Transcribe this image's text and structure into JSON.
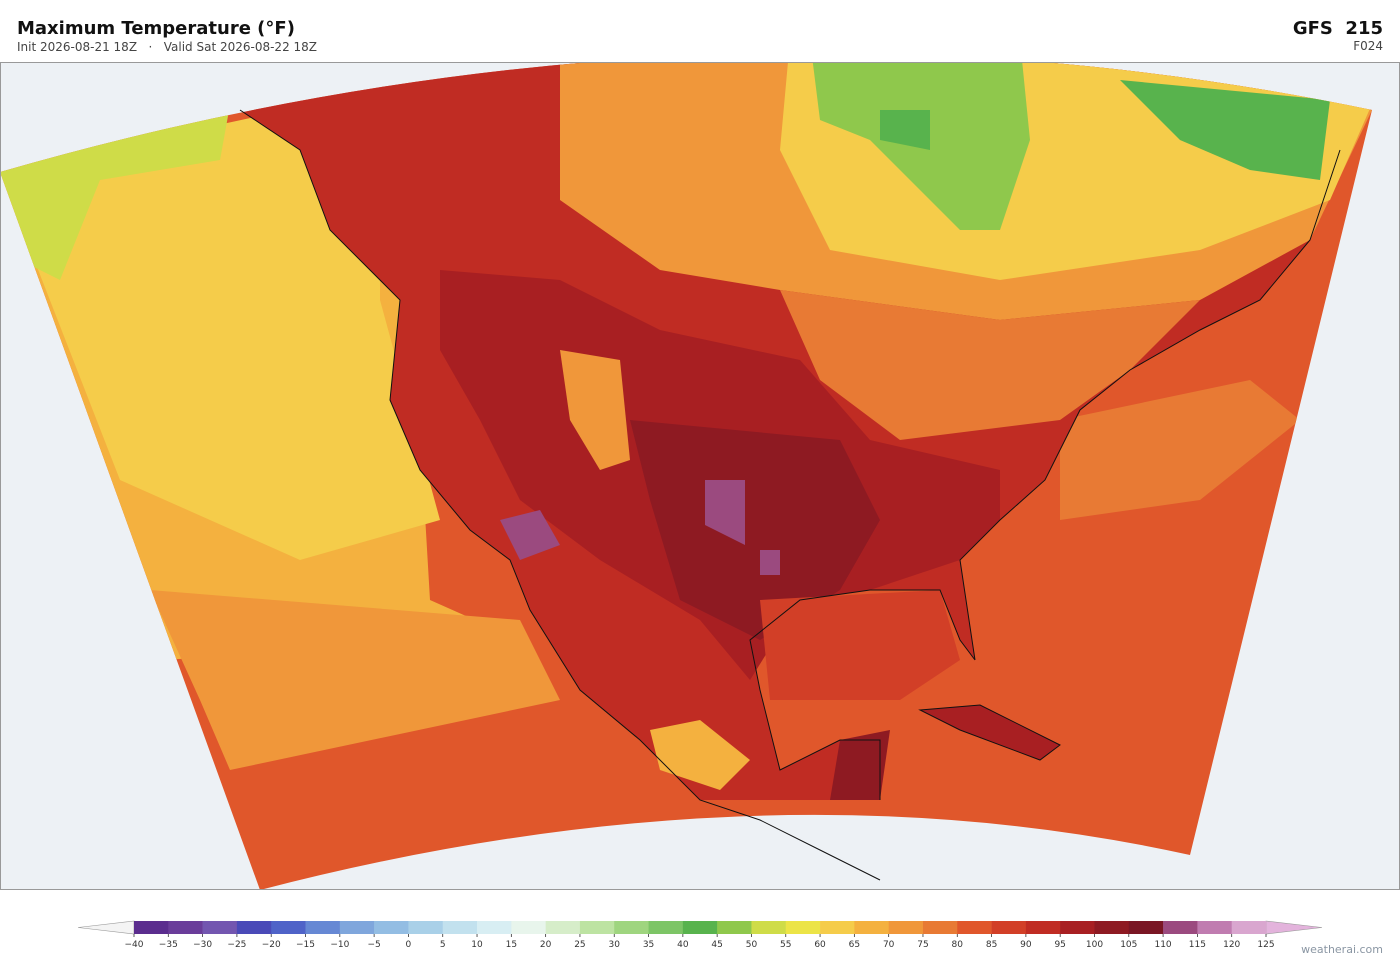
{
  "header": {
    "title": "Maximum Temperature  (°F)",
    "subtitle": "Init 2026-08-21 18Z   ·   Valid Sat 2026-08-22 18Z",
    "model": "GFS  215",
    "forecast_hour": "F024"
  },
  "colorbar": {
    "ticks": [
      {
        "value": -40,
        "label": "−40"
      },
      {
        "value": -35,
        "label": "−35"
      },
      {
        "value": -30,
        "label": "−30"
      },
      {
        "value": -25,
        "label": "−25"
      },
      {
        "value": -20,
        "label": "−20"
      },
      {
        "value": -15,
        "label": "−15"
      },
      {
        "value": -10,
        "label": "−10"
      },
      {
        "value": -5,
        "label": "−5"
      },
      0,
      5,
      10,
      15,
      20,
      25,
      30,
      35,
      40,
      45,
      50,
      55,
      60,
      65,
      70,
      75,
      80,
      85,
      90,
      95,
      100,
      105,
      110,
      115,
      120,
      125
    ],
    "colors": [
      "#5b2d8e",
      "#6a3d9a",
      "#7356b0",
      "#4a4ab8",
      "#4f63c8",
      "#6688d4",
      "#7fa6dc",
      "#93bde3",
      "#a9d0e8",
      "#c2e1ee",
      "#d8eef3",
      "#e8f5ec",
      "#d6edc9",
      "#bde3a2",
      "#9fd57f",
      "#7dc566",
      "#58b34d",
      "#8fc84c",
      "#cfdc48",
      "#ece447",
      "#f5cc4a",
      "#f4b13f",
      "#f0973a",
      "#e87a34",
      "#e0572b",
      "#d23f27",
      "#c02c23",
      "#a81f22",
      "#8e1a22",
      "#7a1624",
      "#9b4a7f",
      "#c07cb0",
      "#d9a6cf"
    ],
    "under_color": "#f4f4f4",
    "over_color": "#e3b3dc"
  },
  "credit": "weatherai.com"
}
